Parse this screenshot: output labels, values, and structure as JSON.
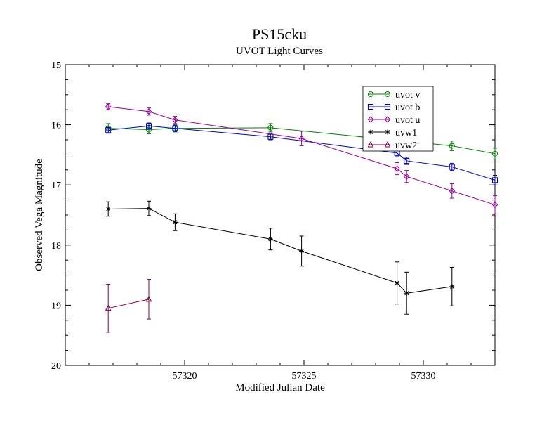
{
  "chart_data": {
    "type": "line",
    "title": "PS15cku",
    "subtitle": "UVOT Light Curves",
    "xlabel": "Modified Julian Date",
    "ylabel": "Observed Vega Magnitude",
    "xlim": [
      57315,
      57333
    ],
    "ylim": [
      15,
      20
    ],
    "y_inverted": true,
    "x_ticks": [
      57320,
      57325,
      57330
    ],
    "x_tick_labels": [
      "57320",
      "57325",
      "57330"
    ],
    "y_ticks": [
      15,
      16,
      17,
      18,
      19,
      20
    ],
    "y_tick_labels": [
      "15",
      "16",
      "17",
      "18",
      "19",
      "20"
    ],
    "grid": false,
    "legend_position": "top-right",
    "series": [
      {
        "name": "uvot v",
        "color": "#008000",
        "marker": "circle",
        "x": [
          57316.8,
          57318.5,
          57319.6,
          57323.6,
          57331.2,
          57333.0
        ],
        "y": [
          16.06,
          16.08,
          16.06,
          16.05,
          16.35,
          16.48
        ],
        "err": [
          0.08,
          0.07,
          0.06,
          0.07,
          0.08,
          0.09
        ]
      },
      {
        "name": "uvot b",
        "color": "#0000cc",
        "marker": "square",
        "x": [
          57316.8,
          57318.5,
          57319.6,
          57323.6,
          57328.9,
          57329.3,
          57331.2,
          57333.0
        ],
        "y": [
          16.09,
          16.02,
          16.06,
          16.2,
          16.47,
          16.6,
          16.7,
          16.92
        ],
        "err": [
          0.05,
          0.05,
          0.05,
          0.05,
          0.06,
          0.06,
          0.06,
          0.08
        ]
      },
      {
        "name": "uvot u",
        "color": "#990099",
        "marker": "diamond",
        "x": [
          57316.8,
          57318.5,
          57319.6,
          57324.9,
          57328.9,
          57329.3,
          57331.2,
          57333.0
        ],
        "y": [
          15.7,
          15.78,
          15.92,
          16.23,
          16.73,
          16.86,
          17.1,
          17.33
        ],
        "err": [
          0.05,
          0.06,
          0.06,
          0.12,
          0.1,
          0.1,
          0.12,
          0.15
        ]
      },
      {
        "name": "uvw1",
        "color": "#000000",
        "marker": "star",
        "x": [
          57316.8,
          57318.5,
          57319.6,
          57323.6,
          57324.9,
          57328.9,
          57329.3,
          57331.2
        ],
        "y": [
          17.4,
          17.39,
          17.62,
          17.9,
          18.1,
          18.63,
          18.8,
          18.69
        ],
        "err": [
          0.12,
          0.12,
          0.14,
          0.18,
          0.25,
          0.35,
          0.35,
          0.32
        ]
      },
      {
        "name": "uvw2",
        "color": "#800040",
        "marker": "triangle",
        "x": [
          57316.8,
          57318.5
        ],
        "y": [
          19.05,
          18.9
        ],
        "err": [
          0.4,
          0.33
        ]
      }
    ]
  }
}
